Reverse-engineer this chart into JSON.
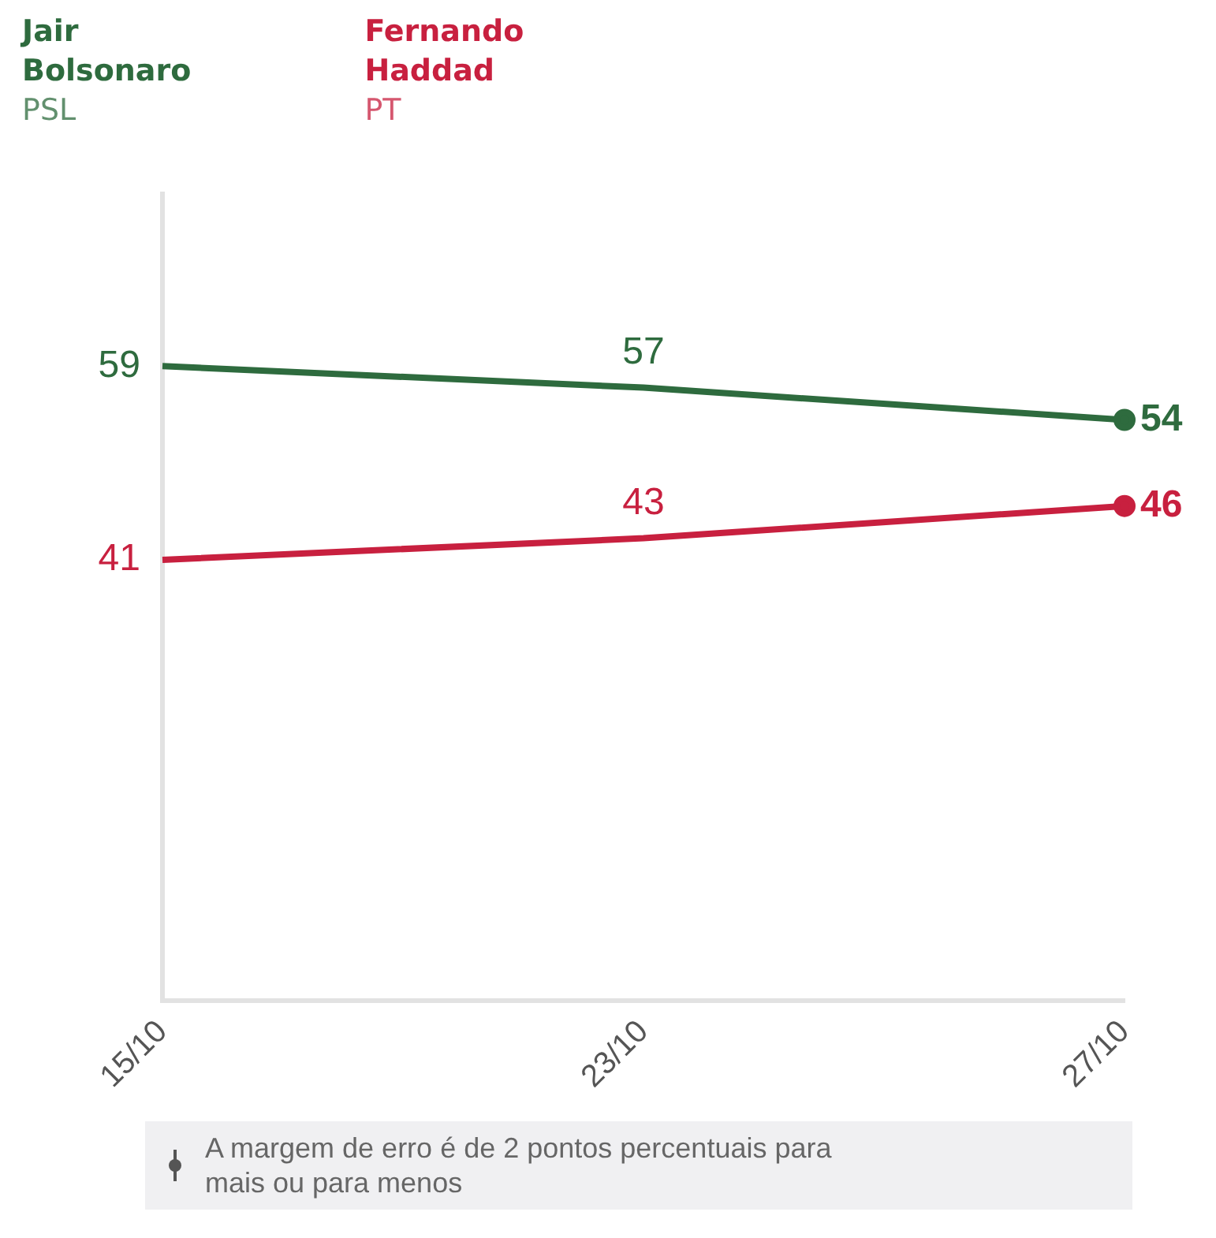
{
  "chart_data": {
    "type": "line",
    "categories": [
      "15/10",
      "23/10",
      "27/10"
    ],
    "series": [
      {
        "name": "Jair Bolsonaro PSL",
        "color": "#2e6b3e",
        "values": [
          59,
          57,
          54
        ]
      },
      {
        "name": "Fernando Haddad PT",
        "color": "#c8203f",
        "values": [
          41,
          43,
          46
        ]
      }
    ],
    "ylim": [
      0,
      75
    ],
    "data_labels": true,
    "legend": "top left",
    "grid": false,
    "tick_labels": "x",
    "line_style": "solid",
    "annotations": [
      "A margem de erro é de 2 pontos percentuais para mais ou para menos"
    ]
  }
}
